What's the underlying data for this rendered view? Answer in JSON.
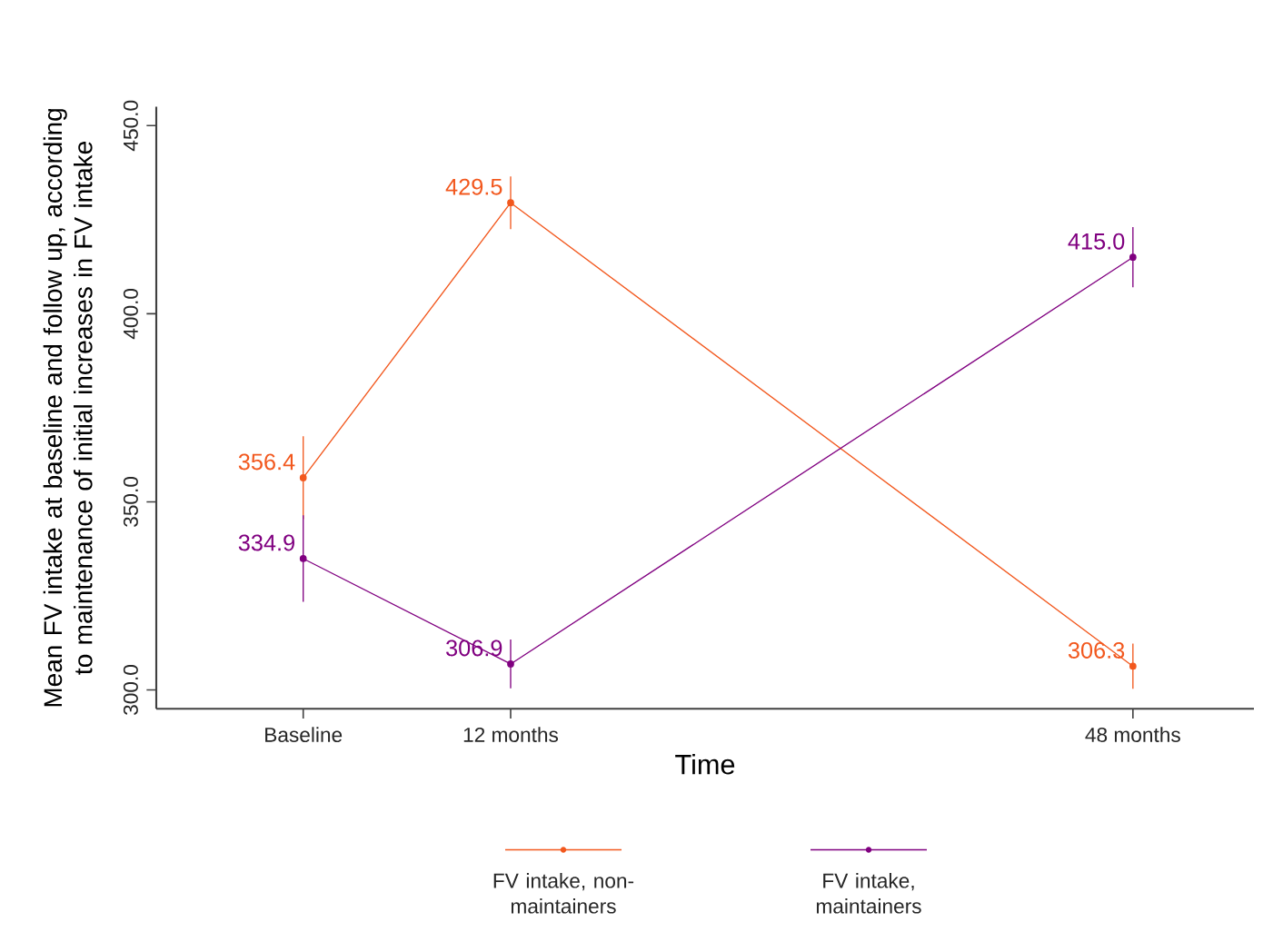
{
  "chart_data": {
    "type": "line",
    "xlabel": "Time",
    "ylabel": "Mean FV intake at baseline and follow up, according to maintenance of initial increases in FV intake",
    "x": [
      0,
      12,
      48
    ],
    "xlim": [
      -8.5,
      55
    ],
    "xticks": [
      {
        "value": 0,
        "label": "Baseline"
      },
      {
        "value": 12,
        "label": "12 months"
      },
      {
        "value": 48,
        "label": "48 months"
      }
    ],
    "ylim": [
      295,
      455
    ],
    "yticks": [
      {
        "value": 300,
        "label": "300.0"
      },
      {
        "value": 350,
        "label": "350.0"
      },
      {
        "value": 400,
        "label": "400.0"
      },
      {
        "value": 450,
        "label": "450.0"
      }
    ],
    "series": [
      {
        "name": "FV intake, non-maintainers",
        "color": "#f2581e",
        "values": [
          356.4,
          429.5,
          306.3
        ],
        "errors": [
          11,
          7,
          6
        ],
        "value_labels": [
          "356.4",
          "429.5",
          "306.3"
        ]
      },
      {
        "name": "FV intake, maintainers",
        "color": "#800080",
        "values": [
          334.9,
          306.9,
          415.0
        ],
        "errors": [
          11.5,
          6.5,
          8
        ],
        "value_labels": [
          "334.9",
          "306.9",
          "415.0"
        ]
      }
    ],
    "marker": "circle",
    "line_style": "solid",
    "grid": false,
    "legend": "bottom"
  }
}
